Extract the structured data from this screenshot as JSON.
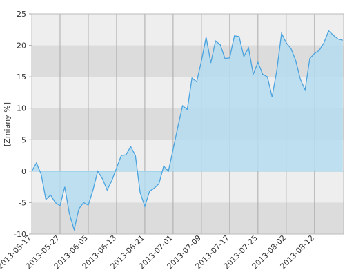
{
  "chart_data": {
    "type": "area",
    "y_label": "[Zmiany %]",
    "categories": [
      "2013-05-17",
      null,
      null,
      null,
      null,
      null,
      "2013-05-27",
      null,
      null,
      null,
      null,
      null,
      "2013-06-05",
      null,
      null,
      null,
      null,
      null,
      "2013-06-13",
      null,
      null,
      null,
      null,
      null,
      "2013-06-21",
      null,
      null,
      null,
      null,
      null,
      "2013-07-01",
      null,
      null,
      null,
      null,
      null,
      "2013-07-09",
      null,
      null,
      null,
      null,
      null,
      "2013-07-17",
      null,
      null,
      null,
      null,
      null,
      "2013-07-25",
      null,
      null,
      null,
      null,
      null,
      "2013-08-02",
      null,
      null,
      null,
      null,
      null,
      "2013-08-12",
      null,
      null,
      null,
      null,
      null,
      null
    ],
    "values": [
      0,
      1.3,
      -0.5,
      -4.5,
      -3.8,
      -5.0,
      -5.5,
      -2.5,
      -6.8,
      -9.3,
      -6.0,
      -5.0,
      -5.4,
      -3.0,
      0,
      -1.2,
      -3.0,
      -1.5,
      0.5,
      2.5,
      2.6,
      3.9,
      2.5,
      -3.4,
      -5.6,
      -3.2,
      -2.7,
      -2.0,
      0.8,
      0,
      3.5,
      7,
      10.4,
      9.8,
      14.8,
      14.2,
      17.5,
      21.3,
      17.2,
      20.7,
      20.1,
      17.9,
      18.0,
      21.5,
      21.4,
      18.2,
      19.6,
      15.4,
      17.3,
      15.4,
      15.0,
      11.8,
      16,
      21.9,
      20.4,
      19.5,
      17.6,
      14.6,
      12.9,
      17.9,
      18.7,
      19.2,
      20.4,
      22.3,
      21.6,
      21.0,
      20.8
    ],
    "color": "#4aa3df",
    "fill": "#b4dcee",
    "ylim": [
      -10,
      25
    ],
    "yticks": [
      -10,
      -5,
      0,
      5,
      10,
      15,
      20,
      25
    ],
    "grid": true
  }
}
